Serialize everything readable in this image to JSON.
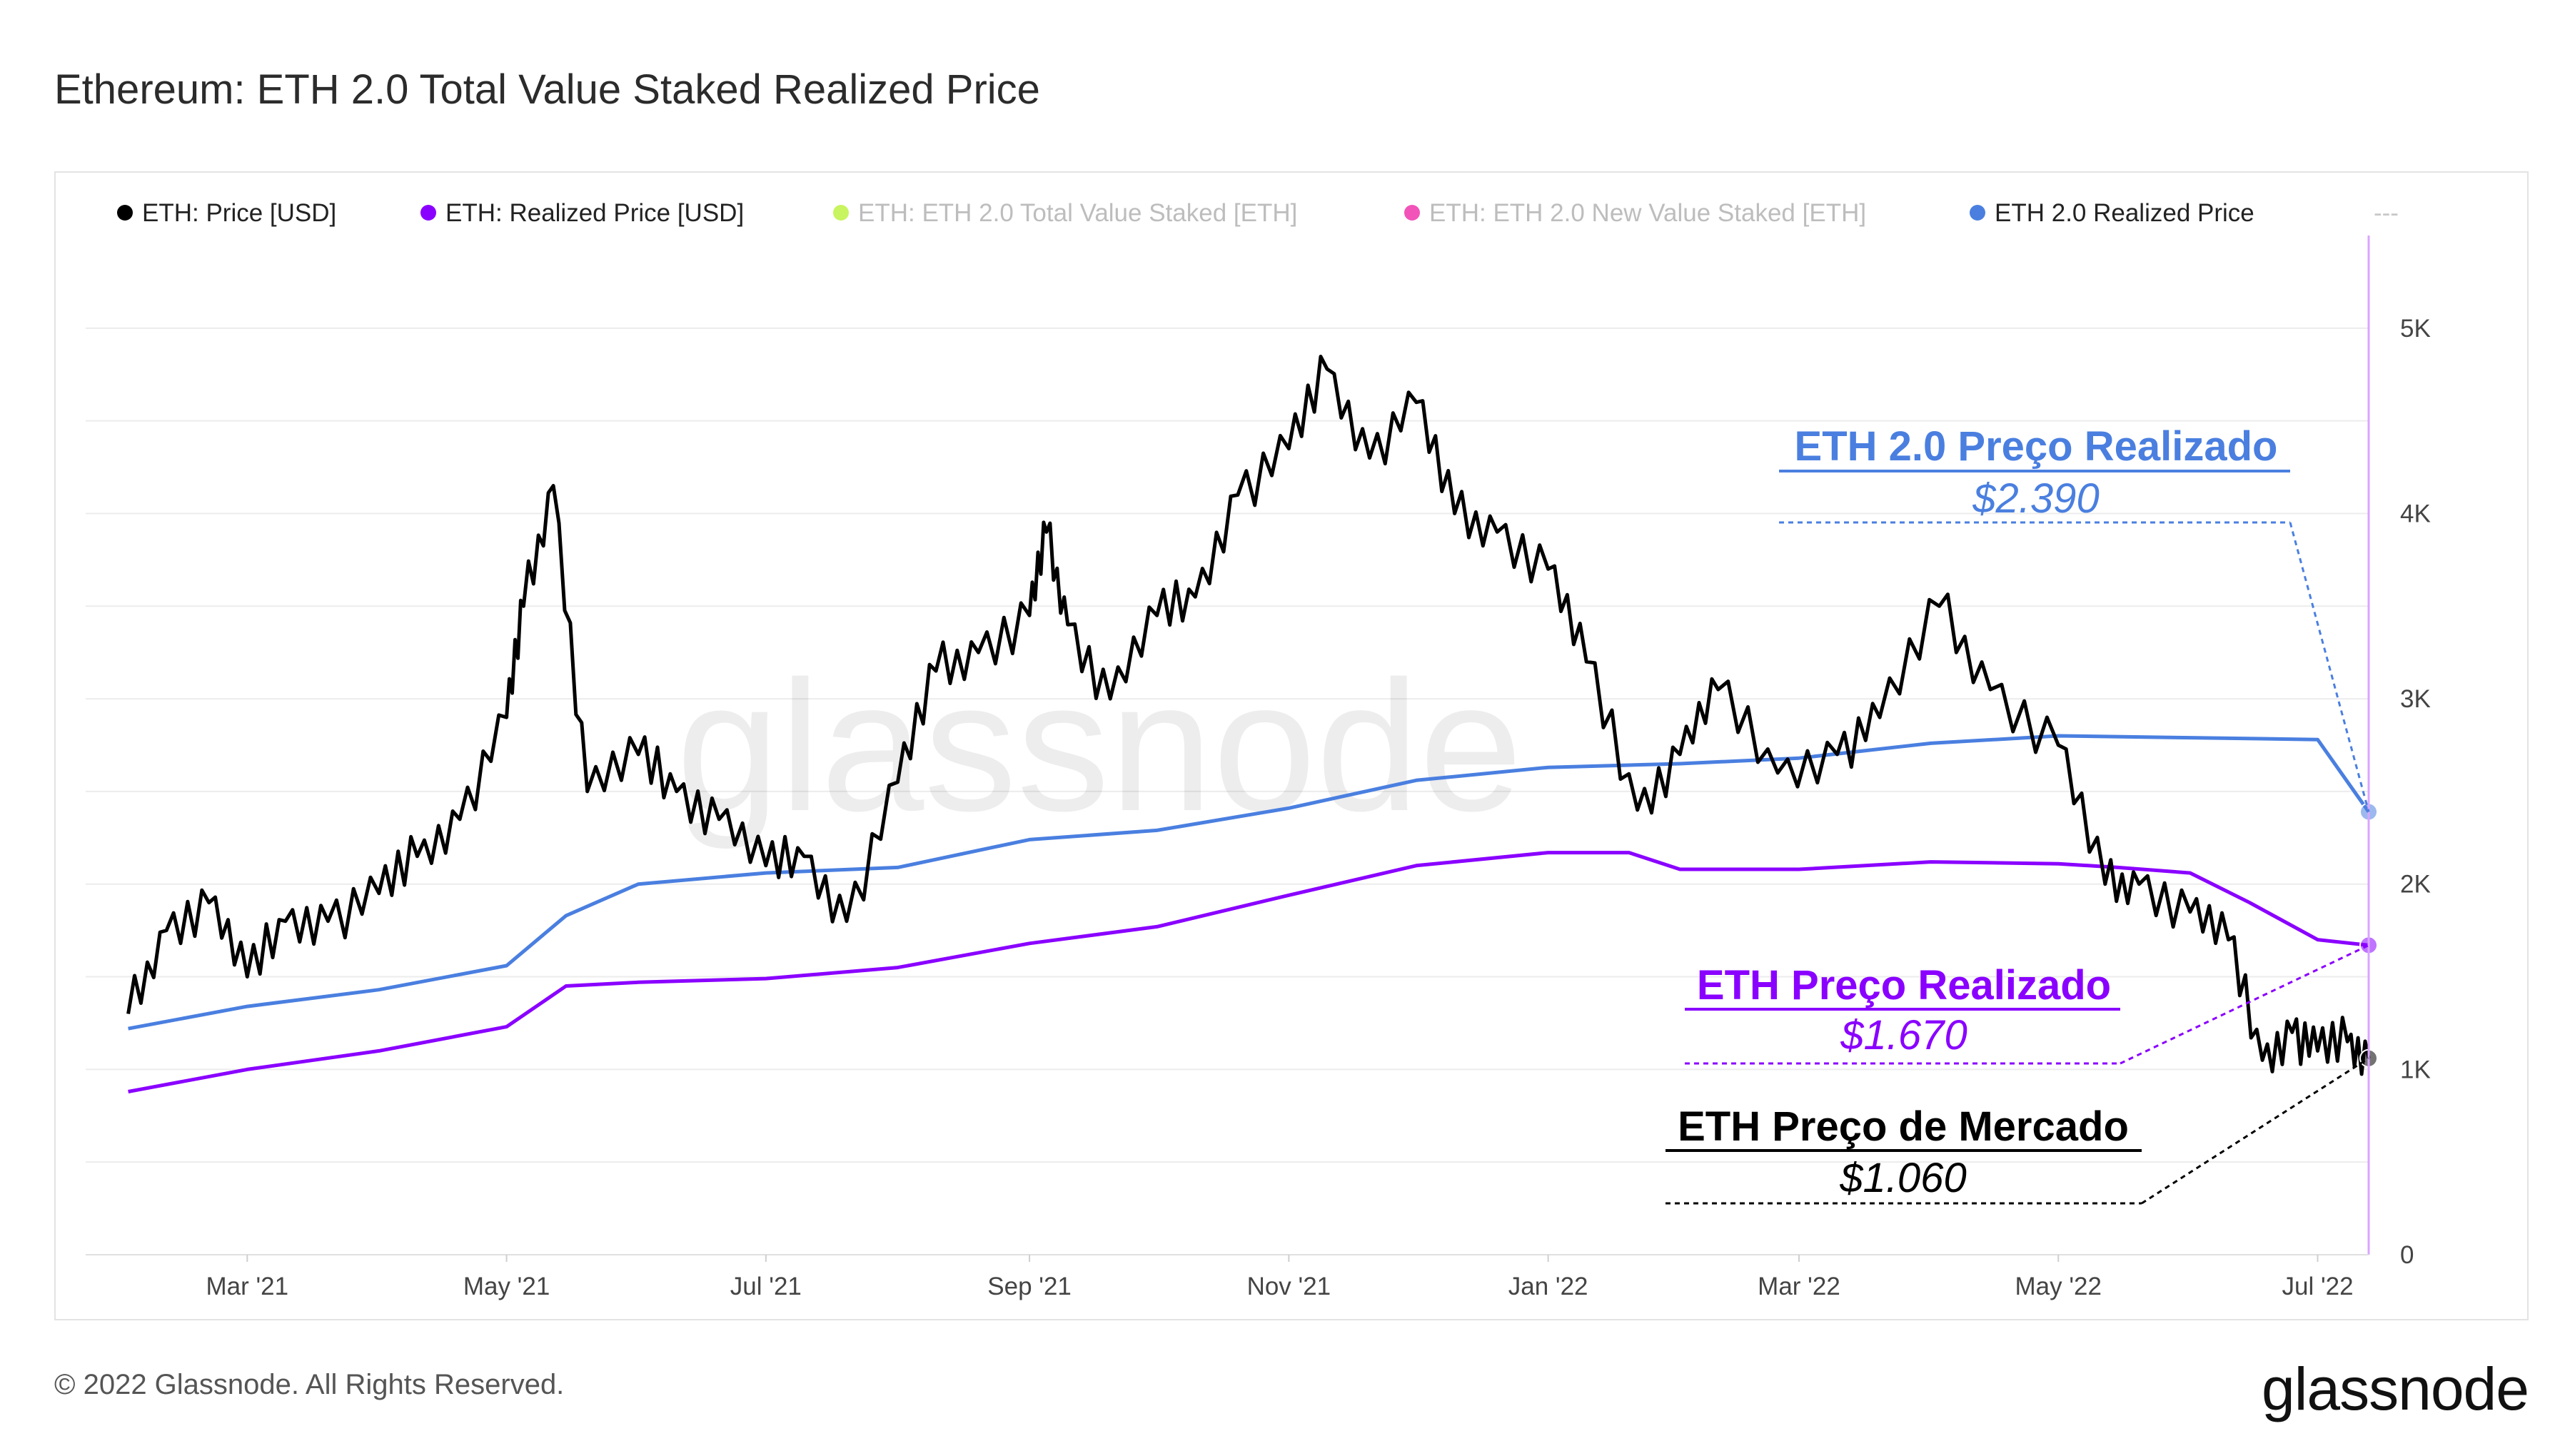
{
  "header": {
    "title": "Ethereum: ETH 2.0 Total Value Staked Realized Price"
  },
  "footer": {
    "copyright": "© 2022 Glassnode. All Rights Reserved.",
    "logo": "glassnode"
  },
  "watermark": "glassnode",
  "colors": {
    "price": "#000000",
    "realized": "#8a00ff",
    "staked": "#b6f02a",
    "new_staked": "#ee1aa0",
    "eth2_realized": "#4a7fe0",
    "grid": "#ececec",
    "axis_line": "#d9a6ff"
  },
  "chart_data": {
    "type": "line",
    "title": "Ethereum: ETH 2.0 Total Value Staked Realized Price",
    "xlabel": "",
    "ylabel": "",
    "ylim": [
      0,
      5500
    ],
    "x_ticks": [
      "Mar '21",
      "May '21",
      "Jul '21",
      "Sep '21",
      "Nov '21",
      "Jan '22",
      "Mar '22",
      "May '22",
      "Jul '22"
    ],
    "y_ticks": [
      "0",
      "1K",
      "2K",
      "3K",
      "4K",
      "5K"
    ],
    "legend": [
      {
        "label": "ETH: Price [USD]",
        "color": "#000000",
        "active": true
      },
      {
        "label": "ETH: Realized Price [USD]",
        "color": "#8a00ff",
        "active": true
      },
      {
        "label": "ETH: ETH 2.0 Total Value Staked [ETH]",
        "color": "#b6f02a",
        "active": false
      },
      {
        "label": "ETH: ETH 2.0 New Value Staked [ETH]",
        "color": "#ee1aa0",
        "active": false
      },
      {
        "label": "ETH 2.0 Realized Price",
        "color": "#4a7fe0",
        "active": true
      }
    ],
    "legend_more": "---",
    "series": [
      {
        "name": "ETH: Price [USD]",
        "color": "#000000",
        "x": [
          "2021-02-01",
          "2021-02-10",
          "2021-02-20",
          "2021-03-01",
          "2021-03-10",
          "2021-03-20",
          "2021-04-01",
          "2021-04-10",
          "2021-04-20",
          "2021-05-01",
          "2021-05-05",
          "2021-05-12",
          "2021-05-20",
          "2021-06-01",
          "2021-06-10",
          "2021-06-20",
          "2021-07-01",
          "2021-07-10",
          "2021-07-20",
          "2021-08-01",
          "2021-08-10",
          "2021-08-20",
          "2021-09-01",
          "2021-09-05",
          "2021-09-10",
          "2021-09-20",
          "2021-10-01",
          "2021-10-10",
          "2021-10-20",
          "2021-11-01",
          "2021-11-10",
          "2021-11-20",
          "2021-12-01",
          "2021-12-10",
          "2021-12-20",
          "2022-01-01",
          "2022-01-10",
          "2022-01-22",
          "2022-02-01",
          "2022-02-10",
          "2022-02-24",
          "2022-03-10",
          "2022-03-20",
          "2022-04-03",
          "2022-04-15",
          "2022-05-01",
          "2022-05-12",
          "2022-05-20",
          "2022-06-01",
          "2022-06-10",
          "2022-06-18",
          "2022-06-25",
          "2022-07-01",
          "2022-07-08",
          "2022-07-13"
        ],
        "values": [
          1300,
          1750,
          1900,
          1500,
          1800,
          1800,
          1950,
          2150,
          2350,
          2900,
          3500,
          4150,
          2500,
          2700,
          2500,
          2350,
          2100,
          2150,
          1800,
          2550,
          3150,
          3250,
          3450,
          3900,
          3400,
          3000,
          3450,
          3550,
          4100,
          4350,
          4780,
          4300,
          4600,
          4000,
          3900,
          3700,
          3200,
          2400,
          2700,
          3050,
          2600,
          2700,
          2900,
          3500,
          3050,
          2750,
          2000,
          2000,
          1850,
          1700,
          1050,
          1200,
          1100,
          1150,
          1060
        ]
      },
      {
        "name": "ETH: Realized Price [USD]",
        "color": "#8a00ff",
        "x": [
          "2021-02-01",
          "2021-03-01",
          "2021-04-01",
          "2021-05-01",
          "2021-05-15",
          "2021-06-01",
          "2021-07-01",
          "2021-08-01",
          "2021-09-01",
          "2021-10-01",
          "2021-11-01",
          "2021-12-01",
          "2022-01-01",
          "2022-01-20",
          "2022-02-01",
          "2022-03-01",
          "2022-04-01",
          "2022-05-01",
          "2022-05-15",
          "2022-06-01",
          "2022-06-15",
          "2022-07-01",
          "2022-07-13"
        ],
        "values": [
          880,
          1000,
          1100,
          1230,
          1450,
          1470,
          1490,
          1550,
          1680,
          1770,
          1940,
          2100,
          2170,
          2170,
          2080,
          2080,
          2120,
          2110,
          2090,
          2060,
          1900,
          1700,
          1670
        ]
      },
      {
        "name": "ETH 2.0 Realized Price",
        "color": "#4a7fe0",
        "x": [
          "2021-02-01",
          "2021-03-01",
          "2021-04-01",
          "2021-05-01",
          "2021-05-15",
          "2021-06-01",
          "2021-07-01",
          "2021-08-01",
          "2021-09-01",
          "2021-10-01",
          "2021-11-01",
          "2021-12-01",
          "2022-01-01",
          "2022-02-01",
          "2022-03-01",
          "2022-04-01",
          "2022-05-01",
          "2022-06-01",
          "2022-07-01",
          "2022-07-13"
        ],
        "values": [
          1220,
          1340,
          1430,
          1560,
          1830,
          2000,
          2060,
          2090,
          2240,
          2290,
          2410,
          2560,
          2630,
          2650,
          2680,
          2760,
          2800,
          2790,
          2780,
          2390
        ]
      }
    ],
    "annotations": [
      {
        "title": "ETH 2.0 Preço Realizado",
        "value": "$2.390",
        "color": "#4a7fe0"
      },
      {
        "title": "ETH Preço Realizado",
        "value": "$1.670",
        "color": "#8a00ff"
      },
      {
        "title": "ETH Preço de Mercado",
        "value": "$1.060",
        "color": "#000000"
      }
    ]
  }
}
